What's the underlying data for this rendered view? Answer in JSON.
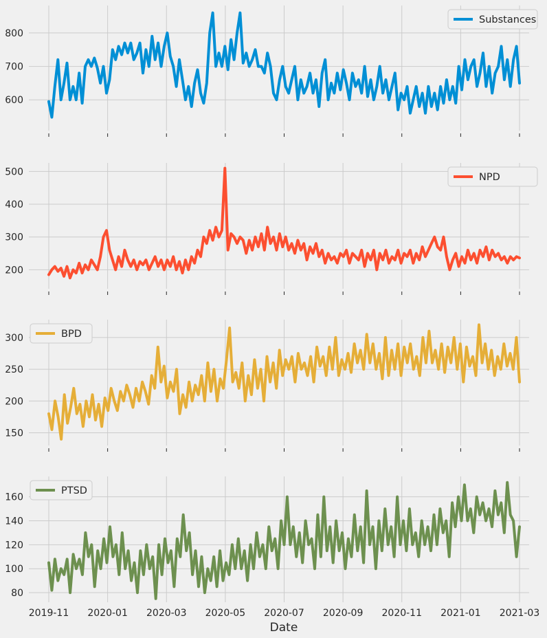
{
  "chart_data": {
    "type": "line",
    "xlabel": "Date",
    "x_ticks": [
      "2019-11",
      "2020-01",
      "2020-03",
      "2020-05",
      "2020-07",
      "2020-09",
      "2020-11",
      "2021-01",
      "2021-03"
    ],
    "grid": true,
    "panels": [
      {
        "series": [
          {
            "name": "Substances",
            "color": "#008fd5",
            "values": [
              595,
              548,
              640,
              720,
              600,
              650,
              710,
              600,
              640,
              600,
              680,
              590,
              700,
              720,
              700,
              725,
              695,
              650,
              700,
              620,
              660,
              750,
              720,
              760,
              735,
              770,
              740,
              770,
              720,
              740,
              770,
              680,
              750,
              700,
              790,
              720,
              770,
              700,
              760,
              800,
              730,
              700,
              640,
              720,
              660,
              600,
              640,
              580,
              650,
              690,
              620,
              590,
              650,
              800,
              860,
              700,
              740,
              700,
              760,
              690,
              780,
              720,
              800,
              860,
              710,
              740,
              700,
              720,
              750,
              700,
              700,
              680,
              740,
              700,
              620,
              600,
              660,
              700,
              640,
              620,
              660,
              700,
              600,
              660,
              620,
              640,
              680,
              620,
              660,
              580,
              680,
              720,
              600,
              650,
              620,
              680,
              630,
              690,
              650,
              600,
              680,
              640,
              660,
              620,
              700,
              610,
              660,
              600,
              640,
              700,
              620,
              660,
              600,
              640,
              680,
              570,
              620,
              600,
              640,
              560,
              600,
              640,
              580,
              620,
              560,
              640,
              580,
              620,
              570,
              640,
              590,
              660,
              600,
              640,
              590,
              700,
              630,
              720,
              660,
              700,
              720,
              640,
              680,
              740,
              640,
              700,
              620,
              680,
              700,
              760,
              660,
              720,
              640,
              720,
              760,
              650
            ]
          }
        ],
        "ylim": [
          508,
          882
        ],
        "yticks": [
          600,
          700,
          800
        ],
        "legend_position": "top-right"
      },
      {
        "series": [
          {
            "name": "NPD",
            "color": "#fc4f30",
            "values": [
              185,
              200,
              210,
              195,
              205,
              180,
              210,
              175,
              200,
              190,
              220,
              190,
              215,
              200,
              230,
              215,
              200,
              240,
              300,
              320,
              260,
              230,
              200,
              240,
              210,
              260,
              230,
              210,
              230,
              200,
              225,
              215,
              230,
              200,
              220,
              240,
              210,
              230,
              200,
              230,
              210,
              240,
              200,
              225,
              190,
              230,
              200,
              240,
              220,
              260,
              240,
              300,
              280,
              320,
              290,
              330,
              300,
              320,
              510,
              260,
              310,
              300,
              280,
              300,
              290,
              250,
              290,
              260,
              300,
              270,
              310,
              260,
              330,
              280,
              300,
              260,
              310,
              270,
              300,
              260,
              280,
              250,
              290,
              260,
              280,
              230,
              270,
              250,
              280,
              240,
              260,
              220,
              250,
              230,
              240,
              220,
              250,
              240,
              260,
              220,
              250,
              240,
              230,
              260,
              210,
              250,
              230,
              260,
              200,
              250,
              230,
              260,
              220,
              240,
              230,
              260,
              220,
              250,
              240,
              260,
              220,
              250,
              230,
              270,
              240,
              260,
              280,
              300,
              270,
              260,
              300,
              240,
              200,
              230,
              250,
              210,
              240,
              220,
              260,
              230,
              250,
              220,
              260,
              240,
              270,
              230,
              260,
              240,
              250,
              230,
              240,
              220,
              240,
              230,
              240,
              236
            ]
          }
        ],
        "ylim": [
          142,
          526
        ],
        "yticks": [
          200,
          300,
          400,
          500
        ],
        "legend_position": "top-right"
      },
      {
        "series": [
          {
            "name": "BPD",
            "color": "#e5ae38",
            "values": [
              180,
              155,
              200,
              175,
              140,
              210,
              165,
              190,
              220,
              180,
              195,
              160,
              200,
              175,
              210,
              170,
              195,
              160,
              205,
              185,
              220,
              200,
              185,
              215,
              200,
              225,
              210,
              190,
              220,
              200,
              230,
              215,
              195,
              240,
              220,
              285,
              230,
              255,
              205,
              230,
              215,
              250,
              180,
              210,
              190,
              230,
              200,
              225,
              210,
              240,
              200,
              260,
              215,
              250,
              200,
              235,
              220,
              265,
              315,
              230,
              245,
              220,
              260,
              200,
              240,
              210,
              265,
              220,
              250,
              200,
              270,
              230,
              260,
              220,
              280,
              240,
              265,
              250,
              270,
              230,
              275,
              250,
              260,
              240,
              270,
              230,
              285,
              255,
              270,
              240,
              285,
              250,
              300,
              240,
              265,
              250,
              275,
              245,
              290,
              260,
              280,
              250,
              305,
              260,
              290,
              250,
              275,
              235,
              300,
              240,
              280,
              250,
              290,
              240,
              285,
              260,
              290,
              250,
              270,
              240,
              300,
              260,
              310,
              260,
              280,
              250,
              290,
              245,
              285,
              260,
              300,
              250,
              290,
              230,
              285,
              255,
              270,
              240,
              320,
              260,
              290,
              250,
              280,
              240,
              270,
              250,
              290,
              255,
              275,
              250,
              300,
              230
            ]
          }
        ],
        "ylim": [
          130,
          328
        ],
        "yticks": [
          150,
          200,
          250,
          300
        ],
        "legend_position": "top-left"
      },
      {
        "series": [
          {
            "name": "PTSD",
            "color": "#6d904f",
            "values": [
              105,
              82,
              108,
              90,
              100,
              95,
              108,
              80,
              112,
              100,
              108,
              95,
              130,
              110,
              120,
              85,
              115,
              100,
              125,
              105,
              135,
              110,
              120,
              95,
              130,
              100,
              115,
              90,
              105,
              80,
              115,
              95,
              120,
              100,
              110,
              75,
              120,
              95,
              125,
              105,
              115,
              85,
              125,
              110,
              145,
              115,
              130,
              95,
              115,
              85,
              110,
              80,
              100,
              90,
              110,
              85,
              115,
              90,
              105,
              95,
              120,
              100,
              125,
              100,
              115,
              90,
              120,
              100,
              130,
              110,
              120,
              100,
              135,
              115,
              125,
              100,
              140,
              120,
              160,
              120,
              135,
              110,
              130,
              105,
              140,
              120,
              125,
              100,
              145,
              110,
              160,
              115,
              135,
              105,
              140,
              115,
              130,
              100,
              125,
              110,
              145,
              115,
              135,
              105,
              165,
              120,
              135,
              100,
              140,
              115,
              150,
              120,
              135,
              110,
              160,
              120,
              140,
              115,
              150,
              120,
              130,
              110,
              140,
              120,
              135,
              115,
              145,
              120,
              150,
              130,
              140,
              110,
              155,
              135,
              160,
              140,
              170,
              140,
              150,
              130,
              160,
              145,
              155,
              140,
              150,
              135,
              165,
              145,
              155,
              130,
              172,
              145,
              140,
              110,
              135
            ]
          }
        ],
        "ylim": [
          72,
          177
        ],
        "yticks": [
          80,
          100,
          120,
          140,
          160
        ],
        "legend_position": "top-left"
      }
    ]
  }
}
